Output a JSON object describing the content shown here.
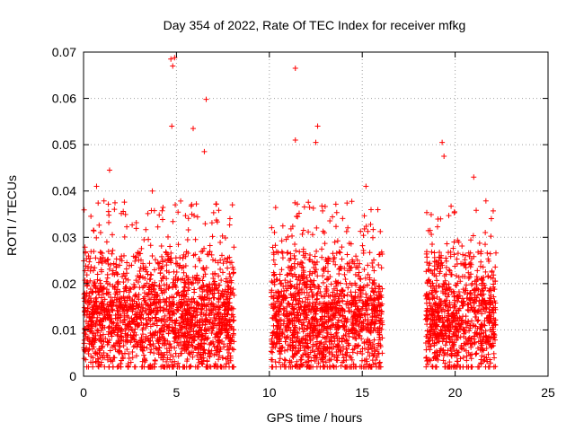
{
  "chart_data": {
    "type": "scatter",
    "title": "Day 354 of 2022, Rate Of TEC Index for receiver mfkg",
    "xlabel": "GPS time / hours",
    "ylabel": "ROTI / TECUs",
    "xlim": [
      0,
      25
    ],
    "ylim": [
      0,
      0.07
    ],
    "xticks": [
      0,
      5,
      10,
      15,
      20,
      25
    ],
    "xtick_labels": [
      "0",
      "5",
      "10",
      "15",
      "20",
      "25"
    ],
    "yticks": [
      0,
      0.01,
      0.02,
      0.03,
      0.04,
      0.05,
      0.06,
      0.07
    ],
    "ytick_labels": [
      "0",
      "0.01",
      "0.02",
      "0.03",
      "0.04",
      "0.05",
      "0.06",
      "0.07"
    ],
    "grid": true,
    "marker": "+",
    "color": "#ff0000",
    "segments": [
      {
        "x_start": 0.0,
        "x_end": 8.1,
        "baseline": 0.011
      },
      {
        "x_start": 10.1,
        "x_end": 16.1,
        "baseline": 0.011
      },
      {
        "x_start": 18.4,
        "x_end": 22.2,
        "baseline": 0.011
      }
    ],
    "notable_points": [
      {
        "x": 4.7,
        "y": 0.0685
      },
      {
        "x": 4.8,
        "y": 0.067
      },
      {
        "x": 4.9,
        "y": 0.0688
      },
      {
        "x": 4.75,
        "y": 0.054
      },
      {
        "x": 5.9,
        "y": 0.0535
      },
      {
        "x": 6.6,
        "y": 0.0598
      },
      {
        "x": 6.5,
        "y": 0.0485
      },
      {
        "x": 11.4,
        "y": 0.0665
      },
      {
        "x": 11.4,
        "y": 0.051
      },
      {
        "x": 12.6,
        "y": 0.054
      },
      {
        "x": 12.5,
        "y": 0.0505
      },
      {
        "x": 19.3,
        "y": 0.0505
      },
      {
        "x": 19.4,
        "y": 0.0475
      },
      {
        "x": 21.0,
        "y": 0.043
      },
      {
        "x": 1.4,
        "y": 0.0445
      },
      {
        "x": 0.7,
        "y": 0.041
      },
      {
        "x": 15.2,
        "y": 0.041
      },
      {
        "x": 3.7,
        "y": 0.04
      }
    ]
  }
}
